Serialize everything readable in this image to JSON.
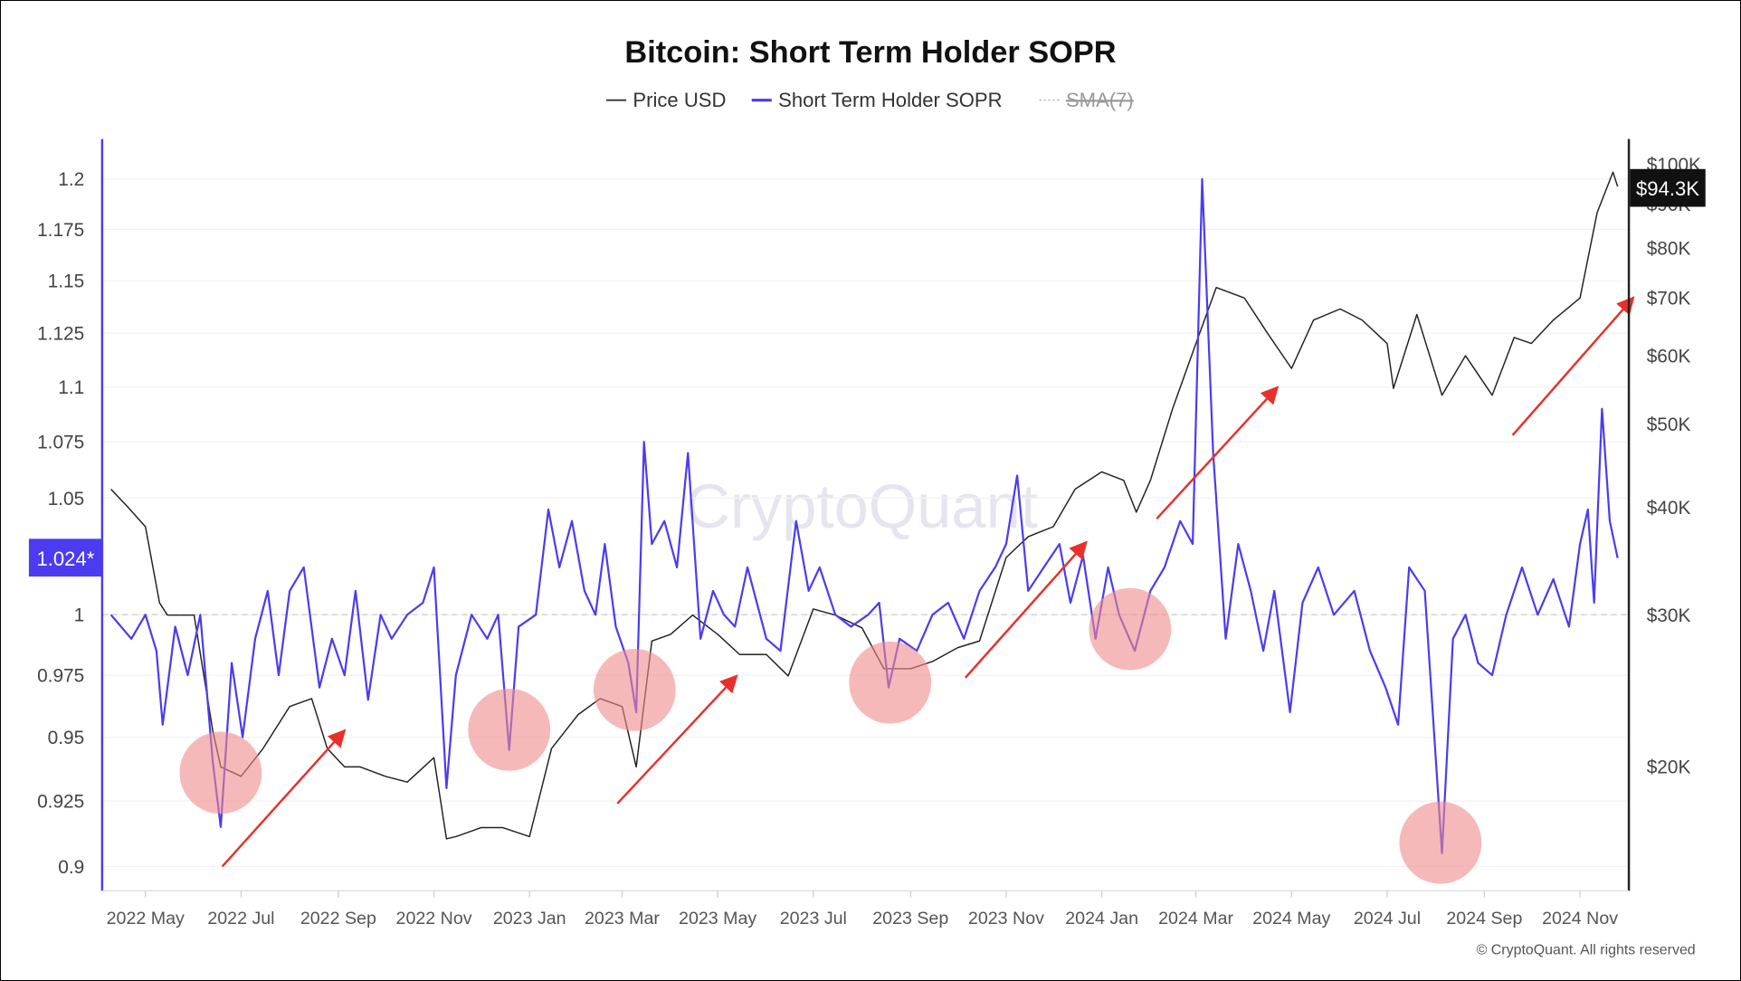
{
  "chart_data": {
    "type": "line",
    "title": "Bitcoin: Short Term Holder SOPR",
    "legend": [
      {
        "label": "Price USD",
        "color": "#333333"
      },
      {
        "label": "Short Term Holder SOPR",
        "color": "#4b3cf0"
      },
      {
        "label": "SMA(7)",
        "color": "#aaaaaa",
        "disabled": true
      }
    ],
    "legend_placement": "top-center",
    "watermark": "CryptoQuant",
    "copyright": "© CryptoQuant. All rights reserved",
    "x_ticks": [
      "2022 May",
      "2022 Jul",
      "2022 Sep",
      "2022 Nov",
      "2023 Jan",
      "2023 Mar",
      "2023 May",
      "2023 Jul",
      "2023 Sep",
      "2023 Nov",
      "2024 Jan",
      "2024 Mar",
      "2024 May",
      "2024 Jul",
      "2024 Sep",
      "2024 Nov"
    ],
    "x_tick_dates": [
      "2022-05-01",
      "2022-07-01",
      "2022-09-01",
      "2022-11-01",
      "2023-01-01",
      "2023-03-01",
      "2023-05-01",
      "2023-07-01",
      "2023-09-01",
      "2023-11-01",
      "2024-01-01",
      "2024-03-01",
      "2024-05-01",
      "2024-07-01",
      "2024-09-01",
      "2024-11-01"
    ],
    "left_axis": {
      "scale": "log",
      "range": [
        0.9,
        1.2
      ],
      "ticks": [
        "1.2",
        "1.175",
        "1.15",
        "1.125",
        "1.1",
        "1.075",
        "1.05",
        "1",
        "0.975",
        "0.95",
        "0.925",
        "0.9"
      ],
      "current_label": "1.024*",
      "reference_line": 1
    },
    "right_axis": {
      "scale": "log",
      "range": [
        14500,
        100000
      ],
      "ticks": [
        "$100K",
        "$90K",
        "$80K",
        "$70K",
        "$60K",
        "$50K",
        "$40K",
        "$30K",
        "$20K"
      ],
      "tick_values": [
        100000,
        90000,
        80000,
        70000,
        60000,
        50000,
        40000,
        30000,
        20000
      ],
      "current_label": "$94.3K"
    },
    "grid": true,
    "series": [
      {
        "name": "Price USD",
        "axis": "right",
        "color": "#222222",
        "x": [
          "2022-04-09",
          "2022-04-20",
          "2022-05-01",
          "2022-05-10",
          "2022-05-15",
          "2022-06-01",
          "2022-06-13",
          "2022-06-18",
          "2022-07-01",
          "2022-07-15",
          "2022-08-01",
          "2022-08-15",
          "2022-08-25",
          "2022-09-05",
          "2022-09-15",
          "2022-10-01",
          "2022-10-15",
          "2022-11-01",
          "2022-11-09",
          "2022-11-15",
          "2022-12-01",
          "2022-12-15",
          "2023-01-01",
          "2023-01-15",
          "2023-02-01",
          "2023-02-15",
          "2023-03-01",
          "2023-03-10",
          "2023-03-20",
          "2023-04-01",
          "2023-04-15",
          "2023-05-01",
          "2023-05-15",
          "2023-06-01",
          "2023-06-15",
          "2023-07-01",
          "2023-07-15",
          "2023-08-01",
          "2023-08-15",
          "2023-09-01",
          "2023-09-15",
          "2023-10-01",
          "2023-10-15",
          "2023-11-01",
          "2023-11-15",
          "2023-12-01",
          "2023-12-15",
          "2024-01-01",
          "2024-01-15",
          "2024-01-23",
          "2024-02-01",
          "2024-02-15",
          "2024-03-01",
          "2024-03-14",
          "2024-04-01",
          "2024-04-15",
          "2024-05-01",
          "2024-05-15",
          "2024-06-01",
          "2024-06-15",
          "2024-07-01",
          "2024-07-05",
          "2024-07-20",
          "2024-08-05",
          "2024-08-20",
          "2024-09-06",
          "2024-09-20",
          "2024-10-01",
          "2024-10-15",
          "2024-11-01",
          "2024-11-12",
          "2024-11-22",
          "2024-11-25"
        ],
        "values": [
          42000,
          40000,
          38000,
          31000,
          30000,
          30000,
          22000,
          20000,
          19500,
          21000,
          23500,
          24000,
          21000,
          20000,
          20000,
          19500,
          19200,
          20500,
          16500,
          16600,
          17000,
          17000,
          16600,
          21000,
          23000,
          24000,
          23500,
          20000,
          28000,
          28500,
          30000,
          28500,
          27000,
          27000,
          25500,
          30500,
          30000,
          29000,
          26000,
          26000,
          26500,
          27500,
          28000,
          35000,
          37000,
          38000,
          42000,
          44000,
          43000,
          39500,
          43000,
          52000,
          62000,
          72000,
          70000,
          64000,
          58000,
          66000,
          68000,
          66000,
          62000,
          55000,
          67000,
          54000,
          60000,
          54000,
          63000,
          62000,
          66000,
          70000,
          88000,
          98000,
          94300
        ]
      },
      {
        "name": "Short Term Holder SOPR",
        "axis": "left",
        "color": "#4b3cf0",
        "x": [
          "2022-04-09",
          "2022-04-22",
          "2022-05-01",
          "2022-05-08",
          "2022-05-12",
          "2022-05-20",
          "2022-05-28",
          "2022-06-05",
          "2022-06-13",
          "2022-06-18",
          "2022-06-25",
          "2022-07-02",
          "2022-07-10",
          "2022-07-18",
          "2022-07-25",
          "2022-08-01",
          "2022-08-10",
          "2022-08-20",
          "2022-08-28",
          "2022-09-05",
          "2022-09-12",
          "2022-09-20",
          "2022-09-28",
          "2022-10-05",
          "2022-10-15",
          "2022-10-25",
          "2022-11-01",
          "2022-11-09",
          "2022-11-15",
          "2022-11-25",
          "2022-12-05",
          "2022-12-12",
          "2022-12-19",
          "2022-12-25",
          "2023-01-05",
          "2023-01-13",
          "2023-01-20",
          "2023-01-28",
          "2023-02-05",
          "2023-02-12",
          "2023-02-18",
          "2023-02-25",
          "2023-03-05",
          "2023-03-10",
          "2023-03-15",
          "2023-03-20",
          "2023-03-28",
          "2023-04-05",
          "2023-04-12",
          "2023-04-20",
          "2023-04-28",
          "2023-05-05",
          "2023-05-12",
          "2023-05-20",
          "2023-06-01",
          "2023-06-10",
          "2023-06-20",
          "2023-06-28",
          "2023-07-05",
          "2023-07-15",
          "2023-07-25",
          "2023-08-05",
          "2023-08-12",
          "2023-08-18",
          "2023-08-25",
          "2023-09-05",
          "2023-09-15",
          "2023-09-25",
          "2023-10-05",
          "2023-10-15",
          "2023-10-25",
          "2023-11-01",
          "2023-11-08",
          "2023-11-15",
          "2023-11-25",
          "2023-12-05",
          "2023-12-12",
          "2023-12-20",
          "2023-12-28",
          "2024-01-05",
          "2024-01-12",
          "2024-01-22",
          "2024-02-01",
          "2024-02-10",
          "2024-02-20",
          "2024-02-28",
          "2024-03-05",
          "2024-03-12",
          "2024-03-20",
          "2024-03-28",
          "2024-04-05",
          "2024-04-13",
          "2024-04-20",
          "2024-04-30",
          "2024-05-08",
          "2024-05-18",
          "2024-05-28",
          "2024-06-10",
          "2024-06-20",
          "2024-06-30",
          "2024-07-08",
          "2024-07-15",
          "2024-07-25",
          "2024-08-05",
          "2024-08-12",
          "2024-08-20",
          "2024-08-28",
          "2024-09-06",
          "2024-09-15",
          "2024-09-25",
          "2024-10-05",
          "2024-10-15",
          "2024-10-25",
          "2024-11-01",
          "2024-11-06",
          "2024-11-10",
          "2024-11-15",
          "2024-11-20",
          "2024-11-25"
        ],
        "values": [
          1.0,
          0.99,
          1.0,
          0.985,
          0.955,
          0.995,
          0.975,
          1.0,
          0.94,
          0.915,
          0.98,
          0.95,
          0.99,
          1.01,
          0.975,
          1.01,
          1.02,
          0.97,
          0.99,
          0.975,
          1.01,
          0.965,
          1.0,
          0.99,
          1.0,
          1.005,
          1.02,
          0.93,
          0.975,
          1.0,
          0.99,
          1.0,
          0.945,
          0.995,
          1.0,
          1.045,
          1.02,
          1.04,
          1.01,
          1.0,
          1.03,
          0.995,
          0.98,
          0.96,
          1.075,
          1.03,
          1.04,
          1.02,
          1.07,
          0.99,
          1.01,
          1.0,
          0.995,
          1.02,
          0.99,
          0.985,
          1.04,
          1.01,
          1.02,
          1.0,
          0.995,
          1.0,
          1.005,
          0.97,
          0.99,
          0.985,
          1.0,
          1.005,
          0.99,
          1.01,
          1.02,
          1.03,
          1.06,
          1.01,
          1.02,
          1.03,
          1.005,
          1.025,
          0.99,
          1.02,
          1.0,
          0.985,
          1.01,
          1.02,
          1.04,
          1.03,
          1.2,
          1.07,
          0.99,
          1.03,
          1.01,
          0.985,
          1.01,
          0.96,
          1.005,
          1.02,
          1.0,
          1.01,
          0.985,
          0.97,
          0.955,
          1.02,
          1.01,
          0.905,
          0.99,
          1.0,
          0.98,
          0.975,
          1.0,
          1.02,
          1.0,
          1.015,
          0.995,
          1.03,
          1.045,
          1.005,
          1.09,
          1.04,
          1.024
        ]
      }
    ],
    "annotations": {
      "circles": [
        {
          "date": "2022-06-18",
          "sopr": 0.936
        },
        {
          "date": "2022-12-19",
          "sopr": 0.953
        },
        {
          "date": "2023-03-09",
          "sopr": 0.969
        },
        {
          "date": "2023-08-19",
          "sopr": 0.972
        },
        {
          "date": "2024-01-19",
          "sopr": 0.994
        },
        {
          "date": "2024-08-04",
          "sopr": 0.909
        }
      ],
      "arrows": [
        {
          "from": [
            "2022-06-19",
            0.9
          ],
          "to": [
            "2022-09-04",
            0.952
          ]
        },
        {
          "from": [
            "2023-02-26",
            0.924
          ],
          "to": [
            "2023-05-12",
            0.974
          ]
        },
        {
          "from": [
            "2023-10-06",
            0.974
          ],
          "to": [
            "2023-12-21",
            1.03
          ]
        },
        {
          "from": [
            "2024-02-05",
            1.041
          ],
          "to": [
            "2024-04-21",
            1.099
          ]
        },
        {
          "from": [
            "2024-09-19",
            1.078
          ],
          "to": [
            "2024-12-04",
            1.141
          ]
        }
      ],
      "circle_color": "#f08a8a",
      "arrow_color": "#e8302a"
    }
  }
}
